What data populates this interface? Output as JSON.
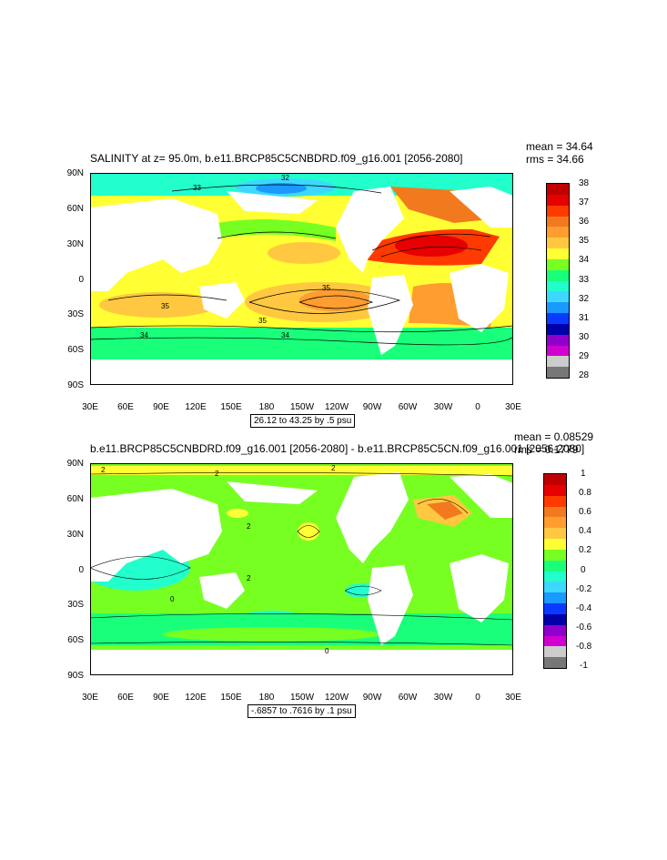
{
  "panels": [
    {
      "title": "SALINITY at z=  95.0m, b.e11.BRCP85C5CNBDRD.f09_g16.001 [2056-2080]",
      "mean_label": "mean = 34.64",
      "rms_label": "rms = 34.66",
      "contour_info": "26.12 to 43.25 by .5 psu",
      "lat_labels": [
        "90N",
        "60N",
        "30N",
        "0",
        "30S",
        "60S",
        "90S"
      ],
      "lon_labels": [
        "30E",
        "60E",
        "90E",
        "120E",
        "150E",
        "180",
        "150W",
        "120W",
        "90W",
        "60W",
        "30W",
        "0",
        "30E"
      ],
      "colorbar": {
        "labels": [
          "38",
          "37",
          "36",
          "35",
          "34",
          "33",
          "32",
          "31",
          "30",
          "29",
          "28"
        ],
        "colors": [
          "#c00000",
          "#e60000",
          "#ff3a00",
          "#f27a1e",
          "#ff9d30",
          "#ffc840",
          "#ffff33",
          "#77ff22",
          "#1aff7a",
          "#22ffcc",
          "#3dd8ff",
          "#1a99ff",
          "#0a3aff",
          "#0000aa",
          "#9000cc",
          "#d000d0",
          "#cccccc",
          "#777777"
        ]
      },
      "contour_labels": [
        "32",
        "33",
        "32",
        "35",
        "35",
        "35",
        "35",
        "34",
        "35",
        "34"
      ]
    },
    {
      "title": "b.e11.BRCP85C5CNBDRD.f09_g16.001 [2056-2080] - b.e11.BRCP85C5CN.f09_g16.001 [2056-2080]",
      "mean_label": "mean = 0.08529",
      "rms_label": "rms = 0.1779",
      "contour_info": "-.6857 to .7616 by .1 psu",
      "lat_labels": [
        "90N",
        "60N",
        "30N",
        "0",
        "30S",
        "60S",
        "90S"
      ],
      "lon_labels": [
        "30E",
        "60E",
        "90E",
        "120E",
        "150E",
        "180",
        "150W",
        "120W",
        "90W",
        "60W",
        "30W",
        "0",
        "30E"
      ],
      "colorbar": {
        "labels": [
          "1",
          "0.8",
          "0.6",
          "0.4",
          "0.2",
          "0",
          "-0.2",
          "-0.4",
          "-0.6",
          "-0.8",
          "-1"
        ],
        "colors": [
          "#c00000",
          "#e60000",
          "#ff3a00",
          "#f27a1e",
          "#ff9d30",
          "#ffc840",
          "#ffff33",
          "#77ff22",
          "#1aff7a",
          "#22ffcc",
          "#3dd8ff",
          "#1a99ff",
          "#0a3aff",
          "#0000aa",
          "#9000cc",
          "#d000d0",
          "#cccccc",
          "#777777"
        ]
      },
      "contour_labels": [
        "2",
        "2",
        "2",
        "2",
        "2",
        "0",
        "0",
        "2"
      ]
    }
  ]
}
